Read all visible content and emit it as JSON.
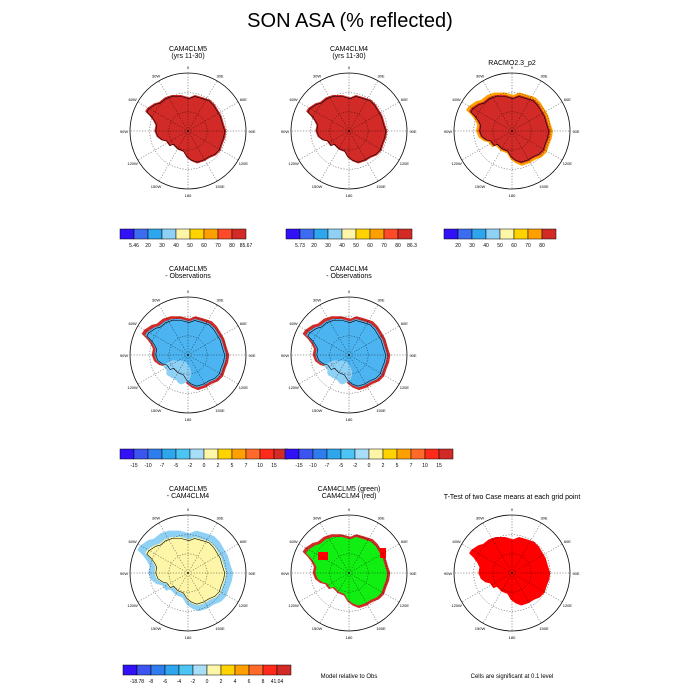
{
  "title": "SON ASA (% reflected)",
  "colors": {
    "ice_red": "#d12a27",
    "ice_blue": "#4cb4f0",
    "ice_lightblue": "#8fd0f5",
    "ice_yellow": "#fdf6a8",
    "ice_orange": "#ffa000",
    "sig_red": "#ff0000",
    "sig_green": "#11ee11",
    "coast": "#000000",
    "grid": "#000000"
  },
  "lon_labels": [
    "0",
    "30E",
    "60E",
    "90E",
    "120E",
    "150E",
    "180",
    "150W",
    "120W",
    "90W",
    "60W",
    "30W"
  ],
  "chart_data": [
    {
      "type": "heatmap",
      "id": "p1",
      "title": [
        "CAM4CLM5",
        "(yrs 11-30)"
      ],
      "fill": "ice_red",
      "projection": "south-polar-stereographic",
      "colorbar": {
        "labels": [
          "5.46",
          "20",
          "30",
          "40",
          "50",
          "60",
          "70",
          "80",
          "85.67"
        ],
        "colors": [
          "#3111f5",
          "#3c6cf0",
          "#2ea6ee",
          "#8fd0f5",
          "#fdf6a8",
          "#ffd200",
          "#ffa000",
          "#ff4a2a",
          "#d12a27"
        ]
      }
    },
    {
      "type": "heatmap",
      "id": "p2",
      "title": [
        "CAM4CLM4",
        "(yrs 11-30)"
      ],
      "fill": "ice_red",
      "projection": "south-polar-stereographic",
      "colorbar": {
        "labels": [
          "5.73",
          "20",
          "30",
          "40",
          "50",
          "60",
          "70",
          "80",
          "86.3"
        ],
        "colors": [
          "#3111f5",
          "#3c6cf0",
          "#2ea6ee",
          "#8fd0f5",
          "#fdf6a8",
          "#ffd200",
          "#ffa000",
          "#ff4a2a",
          "#d12a27"
        ]
      }
    },
    {
      "type": "heatmap",
      "id": "p3",
      "title": [
        "RACMO2.3_p2"
      ],
      "fill": "ice_red",
      "projection": "south-polar-stereographic",
      "colorbar": {
        "labels": [
          "20",
          "30",
          "40",
          "50",
          "60",
          "70",
          "80"
        ],
        "colors": [
          "#3111f5",
          "#3c6cf0",
          "#2ea6ee",
          "#8fd0f5",
          "#fdf6a8",
          "#ffd200",
          "#ffa000",
          "#d12a27"
        ]
      }
    },
    {
      "type": "heatmap",
      "id": "p4",
      "title": [
        "CAM4CLM5",
        "- Observations"
      ],
      "fill": "ice_blue",
      "projection": "south-polar-stereographic",
      "colorbar": {
        "labels": [
          "-15",
          "-10",
          "-7",
          "-5",
          "-2",
          "0",
          "2",
          "5",
          "7",
          "10",
          "15"
        ],
        "colors": [
          "#3111f5",
          "#3c55f0",
          "#2e7cee",
          "#2ea6ee",
          "#4cc4f4",
          "#a8def7",
          "#fdf6a8",
          "#ffd200",
          "#ffa000",
          "#ff6a2a",
          "#ff2a1a",
          "#d12a27"
        ]
      }
    },
    {
      "type": "heatmap",
      "id": "p5",
      "title": [
        "CAM4CLM4",
        "- Observations"
      ],
      "fill": "ice_blue",
      "projection": "south-polar-stereographic",
      "colorbar": {
        "labels": [
          "-15",
          "-10",
          "-7",
          "-5",
          "-2",
          "0",
          "2",
          "5",
          "7",
          "10",
          "15"
        ],
        "colors": [
          "#3111f5",
          "#3c55f0",
          "#2e7cee",
          "#2ea6ee",
          "#4cc4f4",
          "#a8def7",
          "#fdf6a8",
          "#ffd200",
          "#ffa000",
          "#ff6a2a",
          "#ff2a1a",
          "#d12a27"
        ]
      }
    },
    {
      "type": "heatmap",
      "id": "p7",
      "title": [
        "CAM4CLM5",
        "- CAM4CLM4"
      ],
      "fill": "ice_yellow",
      "projection": "south-polar-stereographic",
      "colorbar": {
        "labels": [
          "-18.78",
          "-8",
          "-6",
          "-4",
          "-2",
          "0",
          "2",
          "4",
          "6",
          "8",
          "41.04"
        ],
        "colors": [
          "#3111f5",
          "#3c55f0",
          "#2e7cee",
          "#2ea6ee",
          "#4cc4f4",
          "#a8def7",
          "#fdf6a8",
          "#ffd200",
          "#ffa000",
          "#ff6a2a",
          "#ff2a1a",
          "#d12a27"
        ]
      }
    },
    {
      "type": "heatmap",
      "id": "p8",
      "title": [
        "CAM4CLM5 (green)",
        "CAM4CLM4 (red)"
      ],
      "fill": "sig_green",
      "projection": "south-polar-stereographic",
      "note": "Model relative to Obs"
    },
    {
      "type": "heatmap",
      "id": "p9",
      "title": [
        "T-Test of two Case means at each grid point"
      ],
      "fill": "sig_red",
      "projection": "south-polar-stereographic",
      "note": "Cells are significant at 0.1 level"
    }
  ]
}
